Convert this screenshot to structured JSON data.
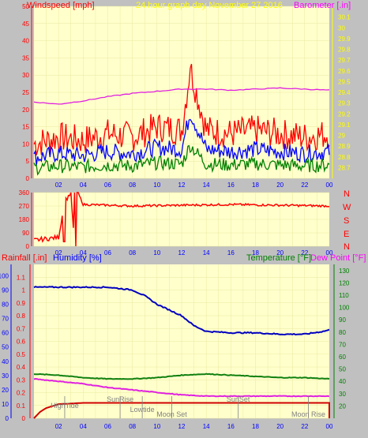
{
  "colors": {
    "plot_bg": "#ffffcc",
    "grid": "#e8e8a0",
    "wind_speed": "#ff0000",
    "wind_mid": "#0000ff",
    "wind_low": "#008000",
    "barometer": "#e020e0",
    "direction": "#ff0000",
    "humidity": "#0000c0",
    "temperature": "#108010",
    "dew_point": "#e020e0",
    "rainfall": "#d00000",
    "title": "#ffff00",
    "label_blue": "#0000ff",
    "label_red": "#ff0000",
    "label_green": "#008000",
    "label_magenta": "#ff00ff",
    "axis_red": "#ff0000",
    "axis_blue": "#0000ff",
    "axis_green": "#008000",
    "axis_yellow": "#ffff00",
    "marker": "#808080"
  },
  "header": {
    "windspeed_label": "Windspeed [mph]",
    "title": "24 hour graph day   November 27 2016",
    "barometer_label": "Barometer [.in]"
  },
  "compass": [
    "N",
    "W",
    "S",
    "E",
    "N"
  ],
  "lower_labels": {
    "rainfall": "Rainfall [.in]",
    "humidity": "Humidity [%]",
    "temperature": "Temperature [°F]",
    "dew_point": "Dew Point [°F]"
  },
  "x_ticks": [
    "02",
    "04",
    "06",
    "08",
    "10",
    "12",
    "14",
    "16",
    "18",
    "20",
    "22",
    "00"
  ],
  "chart_data": [
    {
      "type": "line",
      "title": "Windspeed [mph]",
      "y_ticks": [
        0,
        5,
        10,
        15,
        20,
        25,
        30,
        35,
        40,
        45,
        50
      ],
      "ylim": [
        0,
        50
      ],
      "y2_ticks": [
        "28.7",
        "28.8",
        "28.9",
        "29",
        "29.1",
        "29.2",
        "29.3",
        "29.4",
        "29.5",
        "29.6",
        "29.7",
        "29.8",
        "29.9",
        "30",
        "30.1"
      ],
      "y2lim": [
        28.6,
        30.2
      ],
      "series": [
        {
          "name": "Windspeed [mph]",
          "x": [
            0,
            2,
            4,
            6,
            8,
            10,
            12,
            12.7,
            14,
            16,
            18,
            20,
            22,
            24
          ],
          "y": [
            10,
            12,
            11,
            13,
            12,
            15,
            14,
            32,
            14,
            13,
            14,
            13,
            12,
            13
          ]
        },
        {
          "name": "Barometer [.in]",
          "x": [
            0,
            2,
            4,
            6,
            8,
            10,
            12,
            14,
            16,
            18,
            20,
            22,
            24
          ],
          "y": [
            29.31,
            29.29,
            29.32,
            29.36,
            29.39,
            29.41,
            29.43,
            29.43,
            29.42,
            29.43,
            29.44,
            29.43,
            29.42
          ]
        }
      ]
    },
    {
      "type": "line",
      "title": "Wind Direction",
      "y_ticks": [
        0,
        90,
        180,
        270,
        360
      ],
      "ylim": [
        0,
        360
      ],
      "series": [
        {
          "name": "Direction",
          "x": [
            0,
            1,
            2,
            2.5,
            3,
            3.3,
            3.6,
            4,
            8,
            12,
            16,
            20,
            24
          ],
          "y": [
            40,
            50,
            60,
            300,
            360,
            0,
            355,
            280,
            270,
            275,
            280,
            275,
            270
          ]
        }
      ]
    },
    {
      "type": "line",
      "title": "Humidity / Temperature / Dew Point / Rainfall",
      "y_ticks_rain": [
        0,
        0.1,
        0.2,
        0.3,
        0.4,
        0.5,
        0.6,
        0.7,
        0.8,
        0.9,
        1,
        1.1
      ],
      "ylim_rain": [
        0,
        1.2
      ],
      "y_ticks_humidity": [
        0,
        10,
        20,
        30,
        40,
        50,
        60,
        70,
        80,
        90,
        100
      ],
      "ylim_humidity": [
        0,
        108
      ],
      "y_ticks_temperature": [
        20,
        30,
        40,
        50,
        60,
        70,
        80,
        90,
        100,
        110,
        120,
        130
      ],
      "ylim_temperature": [
        10,
        135
      ],
      "series": [
        {
          "name": "Humidity [%]",
          "x": [
            0,
            2,
            4,
            6,
            8,
            9,
            10,
            12,
            13,
            14,
            16,
            18,
            20,
            22,
            23.5,
            24
          ],
          "y": [
            92,
            92,
            92,
            92,
            90,
            86,
            80,
            72,
            65,
            61,
            60,
            60,
            59,
            59,
            61,
            62
          ]
        },
        {
          "name": "Temperature [°F]",
          "x": [
            0,
            2,
            4,
            6,
            8,
            10,
            12,
            14,
            16,
            18,
            20,
            22,
            24
          ],
          "y": [
            46,
            45,
            43,
            42,
            42,
            43,
            45,
            46,
            45,
            44,
            43,
            43,
            42
          ]
        },
        {
          "name": "Dew Point [°F]",
          "x": [
            0,
            2,
            4,
            6,
            8,
            10,
            12,
            14,
            16,
            18,
            20,
            22,
            24
          ],
          "y": [
            42,
            40,
            38,
            35,
            33,
            31,
            29,
            28,
            28,
            28,
            28,
            28,
            28
          ]
        },
        {
          "name": "Rainfall [.in]",
          "x": [
            0,
            0.5,
            1,
            2,
            4,
            6,
            8,
            10,
            12,
            14,
            16,
            18,
            20,
            22,
            24
          ],
          "y": [
            0,
            0.05,
            0.08,
            0.11,
            0.12,
            0.12,
            0.12,
            0.12,
            0.12,
            0.12,
            0.12,
            0.12,
            0.12,
            0.12,
            0.12
          ]
        }
      ],
      "markers": [
        {
          "label": "HighTide",
          "x": 2.5
        },
        {
          "label": "SunRise",
          "x": 7.0
        },
        {
          "label": "Lowtide",
          "x": 8.8
        },
        {
          "label": "Moon Set",
          "x": 11.2
        },
        {
          "label": "SunSet",
          "x": 16.6
        },
        {
          "label": "Moon Rise",
          "x": 22.3
        }
      ]
    }
  ]
}
